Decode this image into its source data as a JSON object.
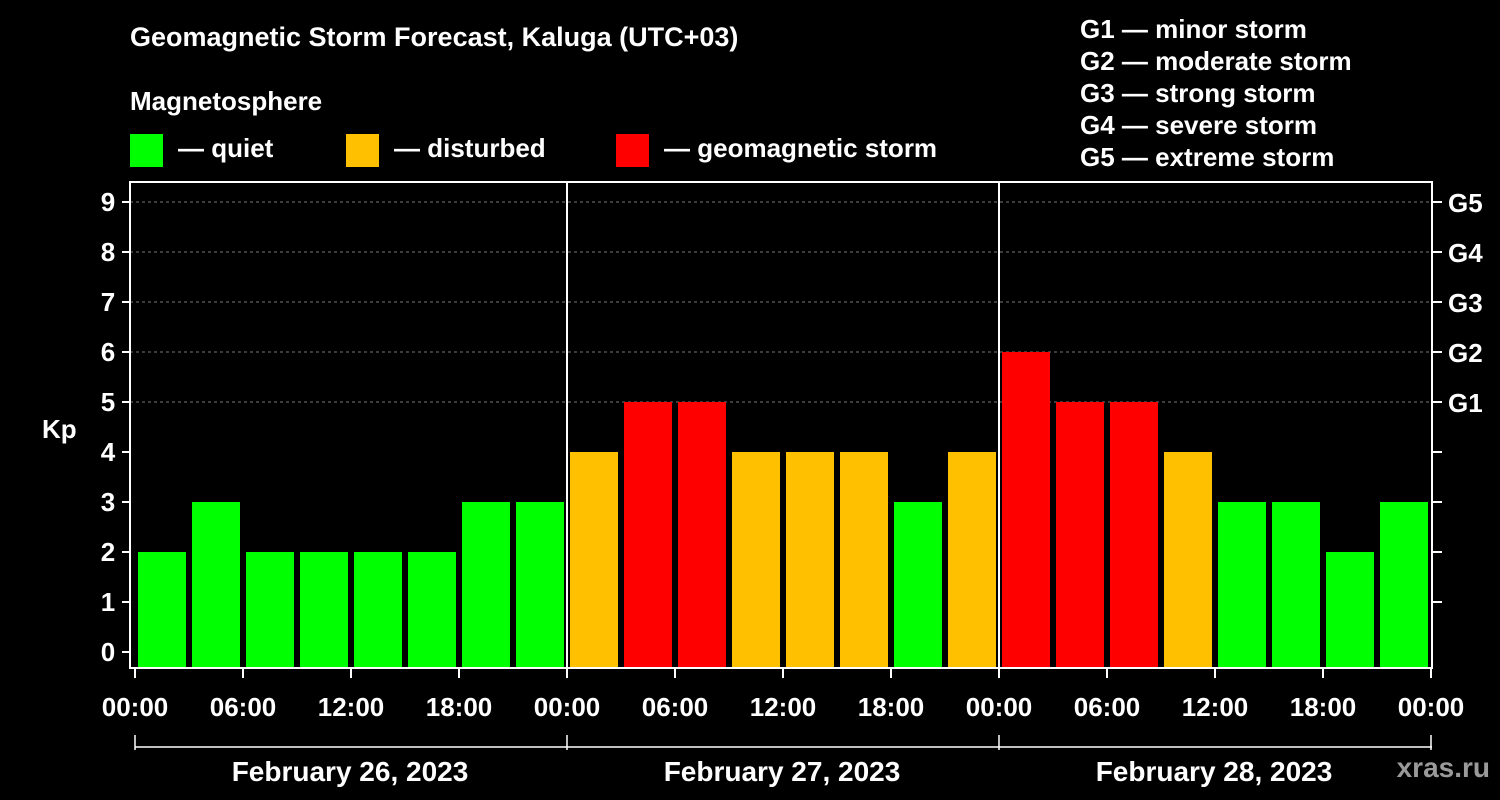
{
  "title": "Geomagnetic Storm Forecast, Kaluga (UTC+03)",
  "subtitle": "Magnetosphere",
  "legend": [
    {
      "label": "— quiet",
      "color": "#00ff00"
    },
    {
      "label": "— disturbed",
      "color": "#ffc000"
    },
    {
      "label": "— geomagnetic storm",
      "color": "#ff0000"
    }
  ],
  "g_scale": [
    "G1 — minor storm",
    "G2 — moderate storm",
    "G3 — strong storm",
    "G4 — severe storm",
    "G5 — extreme storm"
  ],
  "site": "xras.ru",
  "chart_data": {
    "type": "bar",
    "ylabel": "Kp",
    "ylim": [
      0,
      9
    ],
    "y_ticks": [
      0,
      1,
      2,
      3,
      4,
      5,
      6,
      7,
      8,
      9
    ],
    "right_axis": [
      {
        "kp": 5,
        "label": "G1"
      },
      {
        "kp": 6,
        "label": "G2"
      },
      {
        "kp": 7,
        "label": "G3"
      },
      {
        "kp": 8,
        "label": "G4"
      },
      {
        "kp": 9,
        "label": "G5"
      }
    ],
    "x_tick_labels": [
      "00:00",
      "06:00",
      "12:00",
      "18:00",
      "00:00",
      "06:00",
      "12:00",
      "18:00",
      "00:00",
      "06:00",
      "12:00",
      "18:00",
      "00:00"
    ],
    "days": [
      "February 26, 2023",
      "February 27, 2023",
      "February 28, 2023"
    ],
    "intervals_per_day": 8,
    "values": [
      2,
      3,
      2,
      2,
      2,
      2,
      3,
      3,
      4,
      5,
      5,
      4,
      4,
      4,
      3,
      4,
      6,
      5,
      5,
      4,
      3,
      3,
      2,
      3
    ],
    "colors": {
      "quiet": "#00ff00",
      "disturbed": "#ffc000",
      "storm": "#ff0000"
    },
    "thresholds": {
      "disturbed": 4,
      "storm": 5
    },
    "grid": true
  }
}
